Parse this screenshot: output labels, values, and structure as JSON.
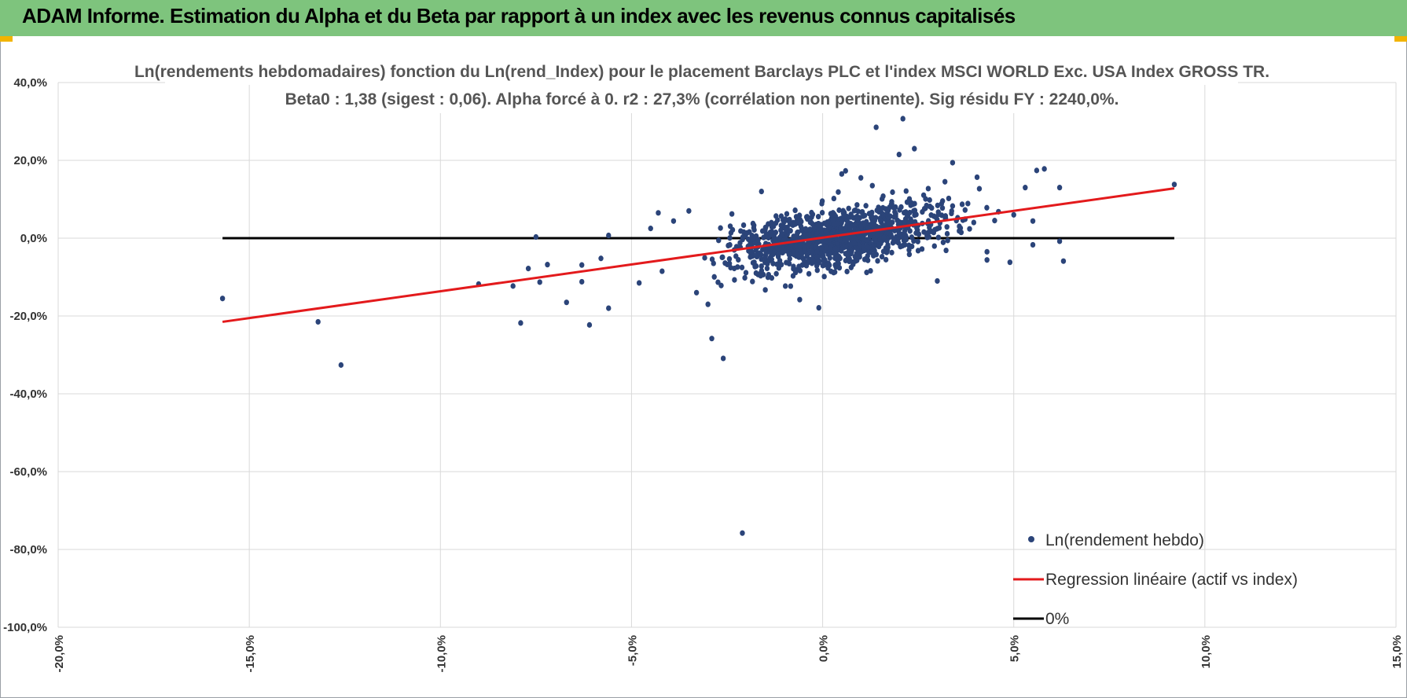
{
  "banner": {
    "title": "ADAM Informe. Estimation du Alpha et du Beta par rapport à un index avec les revenus connus capitalisés"
  },
  "chart_data": {
    "type": "scatter",
    "title_line1": "Ln(rendements hebdomadaires) fonction du Ln(rend_Index) pour le placement Barclays PLC et l'index MSCI WORLD Exc. USA Index GROSS TR.",
    "title_line2": "Beta0 : 1,38 (sigest : 0,06).  Alpha forcé à 0. r2 : 27,3% (corrélation non pertinente). Sig résidu FY : 2240,0%.",
    "xlim": [
      -20,
      15
    ],
    "ylim": [
      -100,
      40
    ],
    "x_ticks": [
      -20,
      -15,
      -10,
      -5,
      0,
      5,
      10,
      15
    ],
    "y_ticks": [
      40,
      20,
      0,
      -20,
      -40,
      -60,
      -80,
      -100
    ],
    "x_tick_labels": [
      "-20,0%",
      "-15,0%",
      "-10,0%",
      "-5,0%",
      "0,0%",
      "5,0%",
      "10,0%",
      "15,0%"
    ],
    "y_tick_labels": [
      "40,0%",
      "20,0%",
      "0,0%",
      "-20,0%",
      "-40,0%",
      "-60,0%",
      "-80,0%",
      "-100,0%"
    ],
    "grid": true,
    "legend_position": "bottom-right",
    "series": [
      {
        "name": "Ln(rendement hebdo)",
        "kind": "scatter",
        "color": "#2b4479",
        "outliers": [
          [
            -15.7,
            -15.5
          ],
          [
            -13.2,
            -21.5
          ],
          [
            -12.6,
            -32.6
          ],
          [
            -9.0,
            -11.8
          ],
          [
            -8.1,
            -12.3
          ],
          [
            -7.9,
            -21.8
          ],
          [
            -7.7,
            -7.8
          ],
          [
            -7.5,
            0.3
          ],
          [
            -7.4,
            -11.3
          ],
          [
            -7.2,
            -6.8
          ],
          [
            -6.7,
            -16.5
          ],
          [
            -6.3,
            -6.9
          ],
          [
            -6.3,
            -11.2
          ],
          [
            -6.1,
            -22.3
          ],
          [
            -5.8,
            -5.2
          ],
          [
            -5.6,
            -18.0
          ],
          [
            -5.6,
            0.7
          ],
          [
            -4.5,
            2.5
          ],
          [
            -4.3,
            6.5
          ],
          [
            -3.9,
            4.4
          ],
          [
            -3.5,
            7.0
          ],
          [
            -3.3,
            -14.0
          ],
          [
            -3.0,
            -17.0
          ],
          [
            -2.9,
            -25.8
          ],
          [
            -2.6,
            -30.9
          ],
          [
            -2.1,
            -75.8
          ],
          [
            -1.5,
            -13.3
          ],
          [
            -0.6,
            -15.8
          ],
          [
            -0.1,
            -17.9
          ],
          [
            0.5,
            16.5
          ],
          [
            0.6,
            17.3
          ],
          [
            1.4,
            28.5
          ],
          [
            1.3,
            13.5
          ],
          [
            2.0,
            21.5
          ],
          [
            2.1,
            30.7
          ],
          [
            2.4,
            23.0
          ],
          [
            3.0,
            -11.0
          ],
          [
            3.2,
            14.5
          ],
          [
            3.4,
            19.4
          ],
          [
            4.1,
            12.7
          ],
          [
            4.3,
            -3.5
          ],
          [
            4.3,
            -5.6
          ],
          [
            4.9,
            -6.2
          ],
          [
            5.0,
            6.0
          ],
          [
            5.3,
            13.0
          ],
          [
            5.5,
            -1.7
          ],
          [
            5.5,
            4.4
          ],
          [
            5.6,
            17.4
          ],
          [
            5.8,
            17.8
          ],
          [
            6.2,
            13.0
          ],
          [
            6.2,
            -0.8
          ],
          [
            6.3,
            -5.9
          ],
          [
            9.2,
            13.8
          ],
          [
            4.6,
            6.8
          ],
          [
            -4.8,
            -11.5
          ],
          [
            -4.2,
            -8.5
          ],
          [
            -1.6,
            12.0
          ],
          [
            1.0,
            15.5
          ],
          [
            2.8,
            9.8
          ],
          [
            3.8,
            8.9
          ]
        ],
        "cluster": {
          "n_points": 1050,
          "x_center": 0.4,
          "y_slope": 1.38,
          "x_spread": 1.6,
          "y_noise": 4.2,
          "seed": 7
        }
      },
      {
        "name": "Regression linéaire (actif vs index)",
        "kind": "line",
        "color": "#e31a1c",
        "x": [
          -15.7,
          9.2
        ],
        "y": [
          -21.5,
          12.8
        ]
      },
      {
        "name": "0%",
        "kind": "line",
        "color": "#000000",
        "x": [
          -15.7,
          9.2
        ],
        "y": [
          0,
          0
        ]
      }
    ]
  }
}
